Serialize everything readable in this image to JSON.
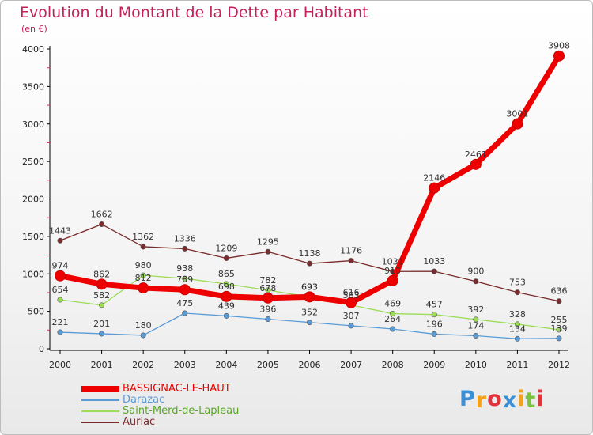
{
  "title": "Evolution du Montant de la Dette par Habitant",
  "subtitle": "(en €)",
  "chart_data": {
    "type": "line",
    "x": [
      "2000",
      "2001",
      "2002",
      "2003",
      "2004",
      "2005",
      "2006",
      "2007",
      "2008",
      "2009",
      "2010",
      "2011",
      "2012"
    ],
    "ylim": [
      0,
      4000
    ],
    "yticks": [
      "0",
      "500",
      "1000",
      "1500",
      "2000",
      "2500",
      "3000",
      "3500",
      "4000"
    ],
    "grid": false,
    "legend_position": "bottom-left",
    "series": [
      {
        "name": "BASSIGNAC-LE-HAUT",
        "color": "#ee0000",
        "values": [
          974,
          862,
          812,
          789,
          698,
          678,
          693,
          616,
          910,
          2146,
          2461,
          3001,
          3908
        ],
        "labels": [
          "974",
          "862",
          "812",
          "789",
          "698",
          "678",
          "693",
          "616",
          "910",
          "2146",
          "2461",
          "3001",
          "3908"
        ]
      },
      {
        "name": "Darazac",
        "color": "#5b9bd5",
        "values": [
          221,
          201,
          180,
          475,
          439,
          396,
          352,
          307,
          264,
          196,
          174,
          134,
          139
        ],
        "labels": [
          "221",
          "201",
          "180",
          "475",
          "439",
          "396",
          "352",
          "307",
          "264",
          "196",
          "174",
          "134",
          "139"
        ]
      },
      {
        "name": "Saint-Merd-de-Lapleau",
        "color": "#9bdc58",
        "values": [
          654,
          582,
          980,
          938,
          865,
          782,
          693,
          583,
          469,
          457,
          392,
          328,
          255
        ],
        "labels": [
          "654",
          "582",
          "980",
          "938",
          "865",
          "782",
          "693",
          "583",
          "469",
          "457",
          "392",
          "328",
          "255"
        ]
      },
      {
        "name": "Auriac",
        "color": "#7a2b2b",
        "values": [
          1443,
          1662,
          1362,
          1336,
          1209,
          1295,
          1138,
          1176,
          1031,
          1033,
          900,
          753,
          636
        ],
        "labels": [
          "1443",
          "1662",
          "1362",
          "1336",
          "1209",
          "1295",
          "1138",
          "1176",
          "1031",
          "1033",
          "900",
          "753",
          "636"
        ]
      }
    ]
  },
  "logo": {
    "letters": [
      "P",
      "r",
      "o",
      "x",
      "i",
      "t",
      "i"
    ],
    "colors": [
      "#3a8fd6",
      "#f2a11a",
      "#e2323b",
      "#3a8fd6",
      "#f2a11a",
      "#7cc242",
      "#e2323b"
    ]
  }
}
